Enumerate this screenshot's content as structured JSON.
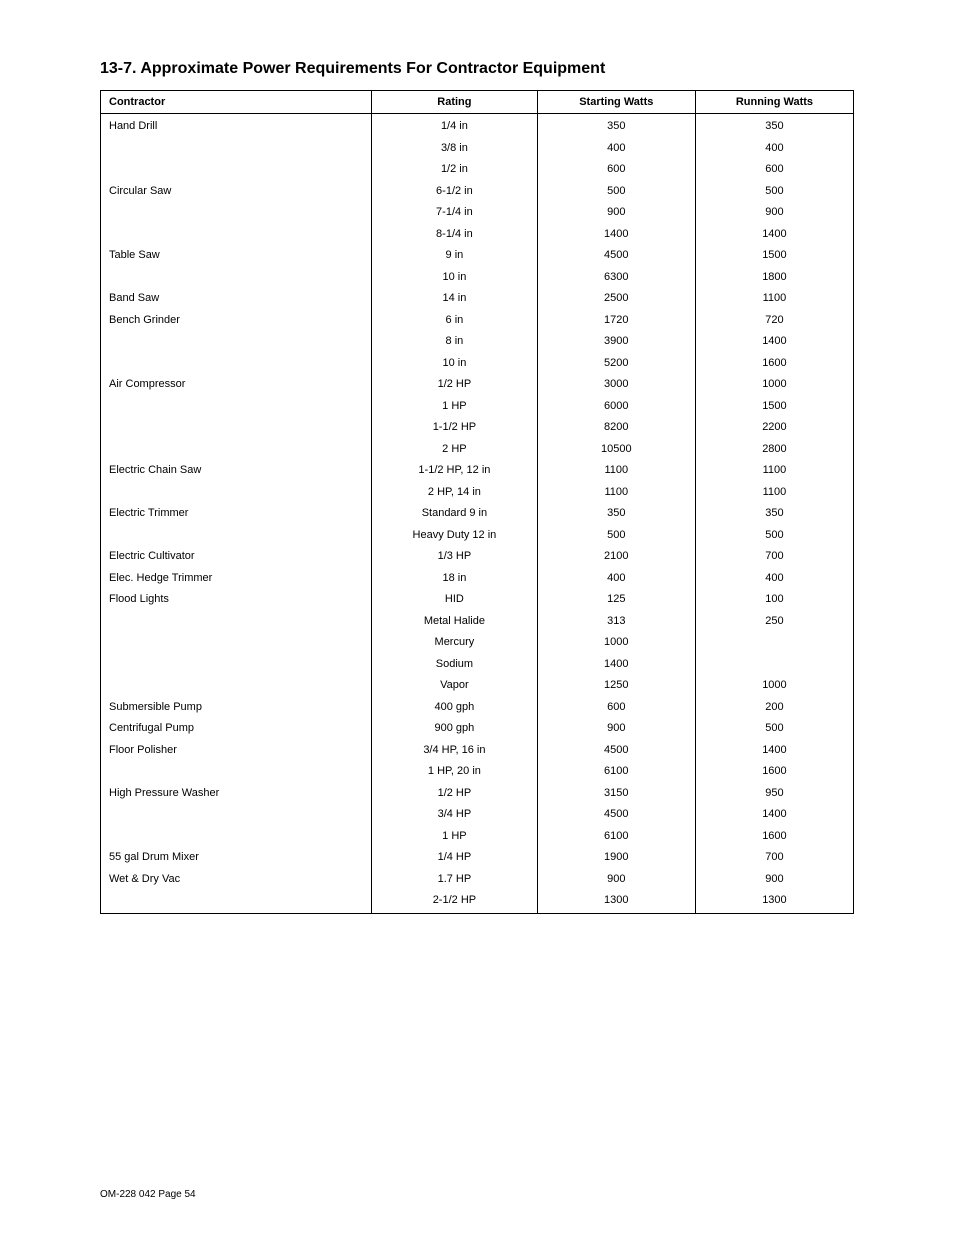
{
  "title": "13-7. Approximate Power Requirements For Contractor Equipment",
  "columns": [
    "Contractor",
    "Rating",
    "Starting Watts",
    "Running Watts"
  ],
  "rows": [
    [
      "Hand Drill",
      "1/4 in",
      "350",
      "350"
    ],
    [
      "",
      "3/8 in",
      "400",
      "400"
    ],
    [
      "",
      "1/2 in",
      "600",
      "600"
    ],
    [
      "Circular Saw",
      "6-1/2 in",
      "500",
      "500"
    ],
    [
      "",
      "7-1/4 in",
      "900",
      "900"
    ],
    [
      "",
      "8-1/4 in",
      "1400",
      "1400"
    ],
    [
      "Table Saw",
      "9 in",
      "4500",
      "1500"
    ],
    [
      "",
      "10 in",
      "6300",
      "1800"
    ],
    [
      "Band Saw",
      "14 in",
      "2500",
      "1100"
    ],
    [
      "Bench Grinder",
      "6 in",
      "1720",
      "720"
    ],
    [
      "",
      "8 in",
      "3900",
      "1400"
    ],
    [
      "",
      "10 in",
      "5200",
      "1600"
    ],
    [
      "Air Compressor",
      "1/2 HP",
      "3000",
      "1000"
    ],
    [
      "",
      "1 HP",
      "6000",
      "1500"
    ],
    [
      "",
      "1-1/2 HP",
      "8200",
      "2200"
    ],
    [
      "",
      "2 HP",
      "10500",
      "2800"
    ],
    [
      "Electric Chain Saw",
      "1-1/2 HP, 12 in",
      "1100",
      "1100"
    ],
    [
      "",
      "2 HP, 14 in",
      "1100",
      "1100"
    ],
    [
      "Electric Trimmer",
      "Standard 9 in",
      "350",
      "350"
    ],
    [
      "",
      "Heavy Duty 12 in",
      "500",
      "500"
    ],
    [
      "Electric Cultivator",
      "1/3 HP",
      "2100",
      "700"
    ],
    [
      "Elec. Hedge Trimmer",
      "18 in",
      "400",
      "400"
    ],
    [
      "Flood Lights",
      "HID",
      "125",
      "100"
    ],
    [
      "",
      "Metal Halide",
      "313",
      "250"
    ],
    [
      "",
      "Mercury",
      "1000",
      ""
    ],
    [
      "",
      "Sodium",
      "1400",
      ""
    ],
    [
      "",
      "Vapor",
      "1250",
      "1000"
    ],
    [
      "Submersible Pump",
      "400 gph",
      "600",
      "200"
    ],
    [
      "Centrifugal Pump",
      "900 gph",
      "900",
      "500"
    ],
    [
      "Floor Polisher",
      "3/4 HP, 16 in",
      "4500",
      "1400"
    ],
    [
      "",
      "1 HP, 20 in",
      "6100",
      "1600"
    ],
    [
      "High Pressure Washer",
      "1/2 HP",
      "3150",
      "950"
    ],
    [
      "",
      "3/4 HP",
      "4500",
      "1400"
    ],
    [
      "",
      "1 HP",
      "6100",
      "1600"
    ],
    [
      "55 gal Drum Mixer",
      "1/4 HP",
      "1900",
      "700"
    ],
    [
      "Wet & Dry Vac",
      "1.7 HP",
      "900",
      "900"
    ],
    [
      "",
      "2-1/2 HP",
      "1300",
      "1300"
    ]
  ],
  "footer": "OM-228 042 Page 54"
}
